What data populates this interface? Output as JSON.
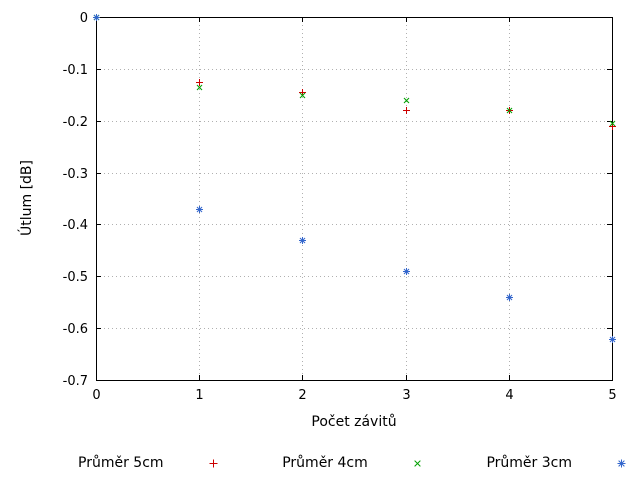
{
  "background": "#ffffff",
  "chart_data": {
    "type": "scatter",
    "title": "",
    "xlabel": "Počet závitů",
    "ylabel": "Útlum [dB]",
    "xlim": [
      0,
      5
    ],
    "ylim": [
      -0.7,
      0
    ],
    "grid": true,
    "grid_style": "dotted",
    "legend_position": "bottom",
    "xtick_values": [
      0,
      1,
      2,
      3,
      4,
      5
    ],
    "xtick_labels": [
      "0",
      "1",
      "2",
      "3",
      "4",
      "5"
    ],
    "ytick_values": [
      0,
      -0.1,
      -0.2,
      -0.3,
      -0.4,
      -0.5,
      -0.6,
      -0.7
    ],
    "ytick_labels": [
      "0",
      "-0.1",
      "-0.2",
      "-0.3",
      "-0.4",
      "-0.5",
      "-0.6",
      "-0.7"
    ],
    "x": [
      0,
      1,
      2,
      3,
      4,
      5
    ],
    "series": [
      {
        "name": "Průměr 5cm",
        "marker": "plus",
        "color": "#cc0000",
        "values": [
          0,
          -0.125,
          -0.145,
          -0.18,
          -0.18,
          -0.21
        ]
      },
      {
        "name": "Průměr 4cm",
        "marker": "cross",
        "color": "#00a000",
        "values": [
          0,
          -0.135,
          -0.15,
          -0.16,
          -0.18,
          -0.205
        ]
      },
      {
        "name": "Průměr 3cm",
        "marker": "asterisk",
        "color": "#3366cc",
        "values": [
          0,
          -0.37,
          -0.43,
          -0.49,
          -0.54,
          -0.62
        ]
      }
    ]
  }
}
